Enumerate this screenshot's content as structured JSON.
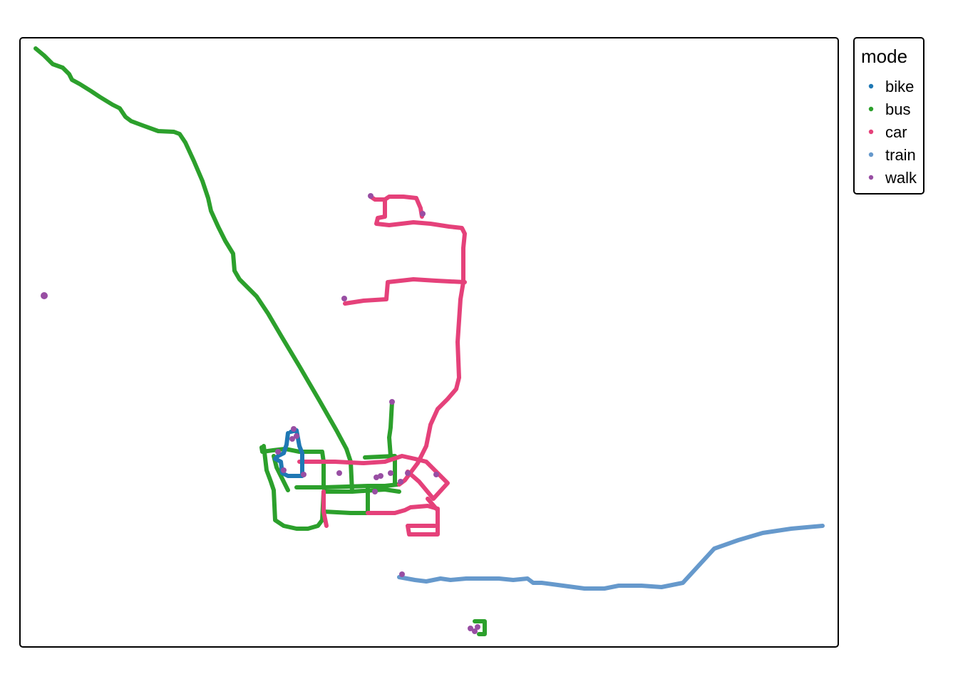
{
  "legend": {
    "title": "mode",
    "items": [
      {
        "label": "bike",
        "color": "#1f78b4"
      },
      {
        "label": "bus",
        "color": "#2ca02c"
      },
      {
        "label": "car",
        "color": "#e5417a"
      },
      {
        "label": "train",
        "color": "#6699cc"
      },
      {
        "label": "walk",
        "color": "#984ea3"
      }
    ]
  }
}
